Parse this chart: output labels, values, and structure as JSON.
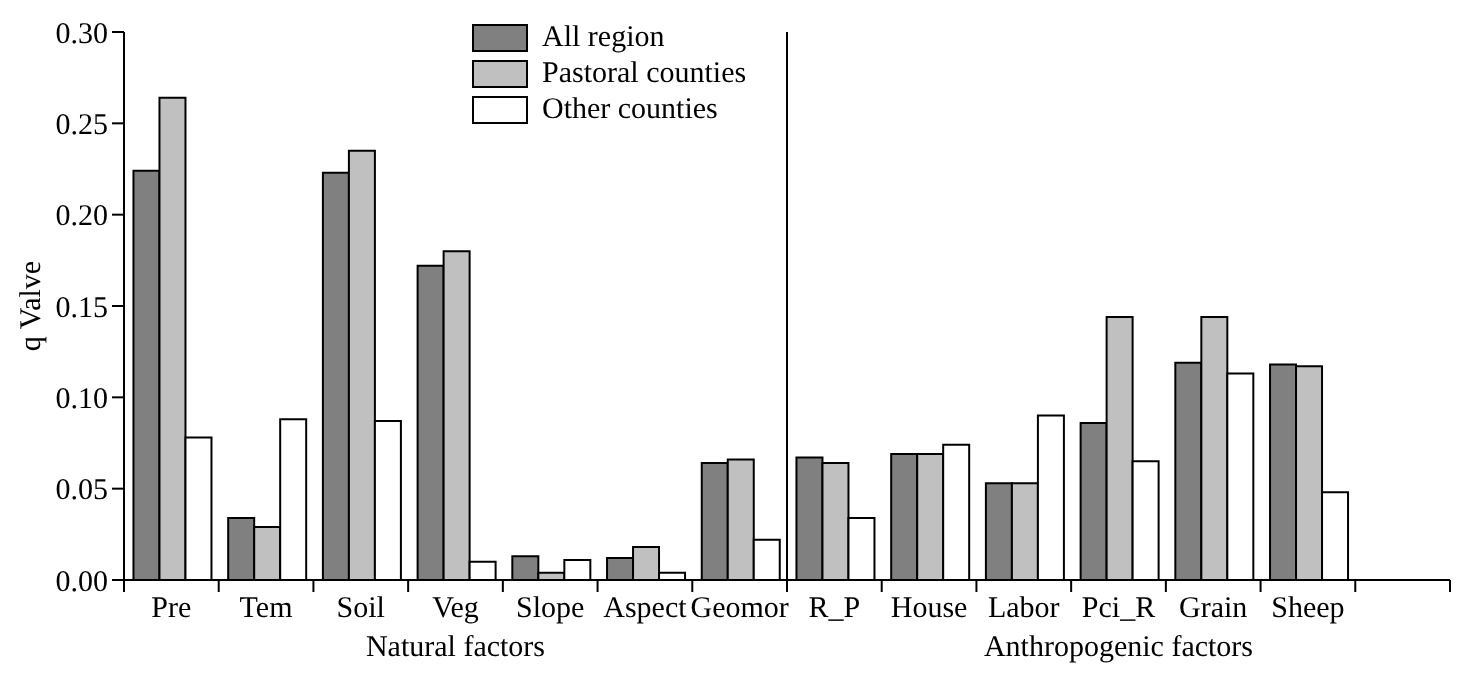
{
  "chart_data": {
    "type": "bar",
    "ylabel": "q Valve",
    "categories": [
      "Pre",
      "Tem",
      "Soil",
      "Veg",
      "Slope",
      "Aspect",
      "Geomor",
      "R_P",
      "House",
      "Labor",
      "Pci_R",
      "Grain",
      "Sheep",
      null
    ],
    "series": [
      {
        "name": "All region",
        "color": "#808080",
        "values": [
          0.224,
          0.034,
          0.223,
          0.172,
          0.013,
          0.012,
          0.064,
          0.067,
          0.069,
          0.053,
          0.086,
          0.119,
          0.118,
          null
        ]
      },
      {
        "name": "Pastoral counties",
        "color": "#c0c0c0",
        "values": [
          0.264,
          0.029,
          0.235,
          0.18,
          0.004,
          0.018,
          0.066,
          0.064,
          0.069,
          0.053,
          0.144,
          0.144,
          0.117,
          null
        ]
      },
      {
        "name": "Other counties",
        "color": "#ffffff",
        "values": [
          0.078,
          0.088,
          0.087,
          0.01,
          0.011,
          0.004,
          0.022,
          0.034,
          0.074,
          0.09,
          0.065,
          0.113,
          0.048,
          null
        ]
      }
    ],
    "ylim": [
      0,
      0.3
    ],
    "yticks": [
      {
        "value": 0,
        "label": "0.00"
      },
      0.05,
      {
        "value": 0.1,
        "label": "0.10"
      },
      0.15,
      {
        "value": 0.2,
        "label": "0.20"
      },
      0.25,
      {
        "value": 0.3,
        "label": "0.30"
      }
    ],
    "annotations": [
      "Natural factors",
      "Anthropogenic factors"
    ],
    "grid": false,
    "legend": "top"
  }
}
